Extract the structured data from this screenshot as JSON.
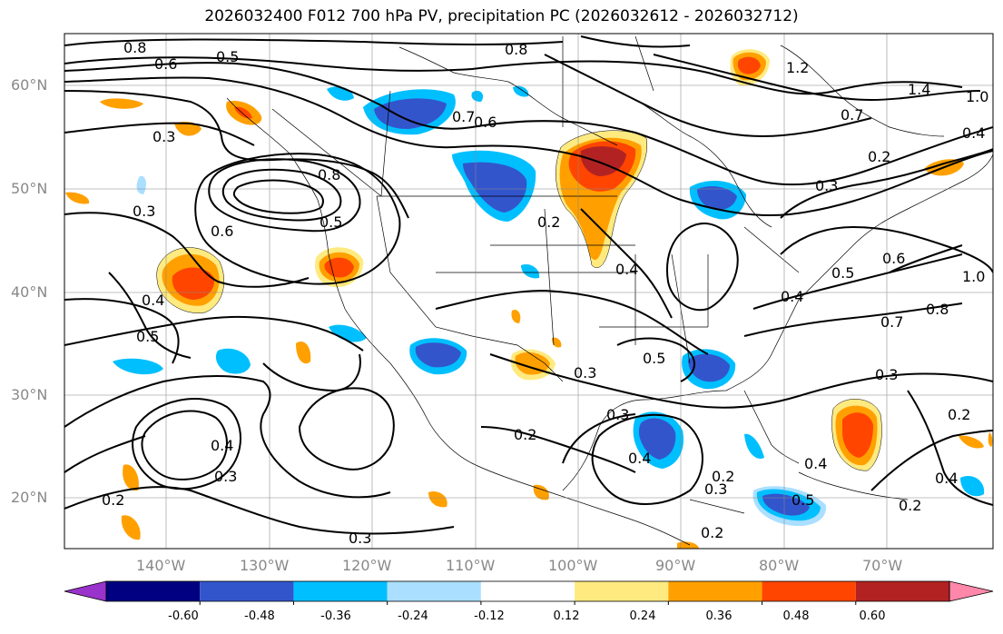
{
  "title": "2026032400 F012 700 hPa PV, precipitation PC (2026032612 - 2026032712)",
  "lat_labels": [
    "60°N",
    "50°N",
    "40°N",
    "30°N",
    "20°N"
  ],
  "lon_labels": [
    "140°W",
    "130°W",
    "120°W",
    "110°W",
    "100°W",
    "90°W",
    "80°W",
    "70°W"
  ],
  "colorbar": {
    "colors": [
      "#9933cc",
      "#000080",
      "#3355cc",
      "#00bfff",
      "#aadfff",
      "#ffffff",
      "#ffea80",
      "#ffa000",
      "#ff4500",
      "#b22222",
      "#ff88aa"
    ],
    "tick_labels": [
      "-0.60",
      "-0.48",
      "-0.36",
      "-0.24",
      "-0.12",
      "0.12",
      "0.24",
      "0.36",
      "0.48",
      "0.60"
    ]
  },
  "contour_labels": [
    {
      "text": "0.8"
    },
    {
      "text": "0.6"
    },
    {
      "text": "0.5"
    },
    {
      "text": "0.8"
    },
    {
      "text": "1.2"
    },
    {
      "text": "1.4"
    },
    {
      "text": "1.0"
    },
    {
      "text": "0.4"
    },
    {
      "text": "0.7"
    },
    {
      "text": "0.6"
    },
    {
      "text": "0.3"
    },
    {
      "text": "0.8"
    },
    {
      "text": "0.7"
    },
    {
      "text": "0.2"
    },
    {
      "text": "0.3"
    },
    {
      "text": "0.3"
    },
    {
      "text": "0.6"
    },
    {
      "text": "0.5"
    },
    {
      "text": "0.2"
    },
    {
      "text": "0.4"
    },
    {
      "text": "0.4"
    },
    {
      "text": "0.5"
    },
    {
      "text": "0.6"
    },
    {
      "text": "1.0"
    },
    {
      "text": "0.4"
    },
    {
      "text": "0.7"
    },
    {
      "text": "0.8"
    },
    {
      "text": "0.5"
    },
    {
      "text": "0.3"
    },
    {
      "text": "0.3"
    },
    {
      "text": "0.3"
    },
    {
      "text": "0.2"
    },
    {
      "text": "0.2"
    },
    {
      "text": "0.4"
    },
    {
      "text": "0.3"
    },
    {
      "text": "0.4"
    },
    {
      "text": "0.2"
    },
    {
      "text": "0.3"
    },
    {
      "text": "0.5"
    },
    {
      "text": "0.2"
    },
    {
      "text": "0.4"
    },
    {
      "text": "0.2"
    },
    {
      "text": "0.3"
    },
    {
      "text": "0.2"
    },
    {
      "text": "0.5"
    },
    {
      "text": "0.4"
    }
  ]
}
